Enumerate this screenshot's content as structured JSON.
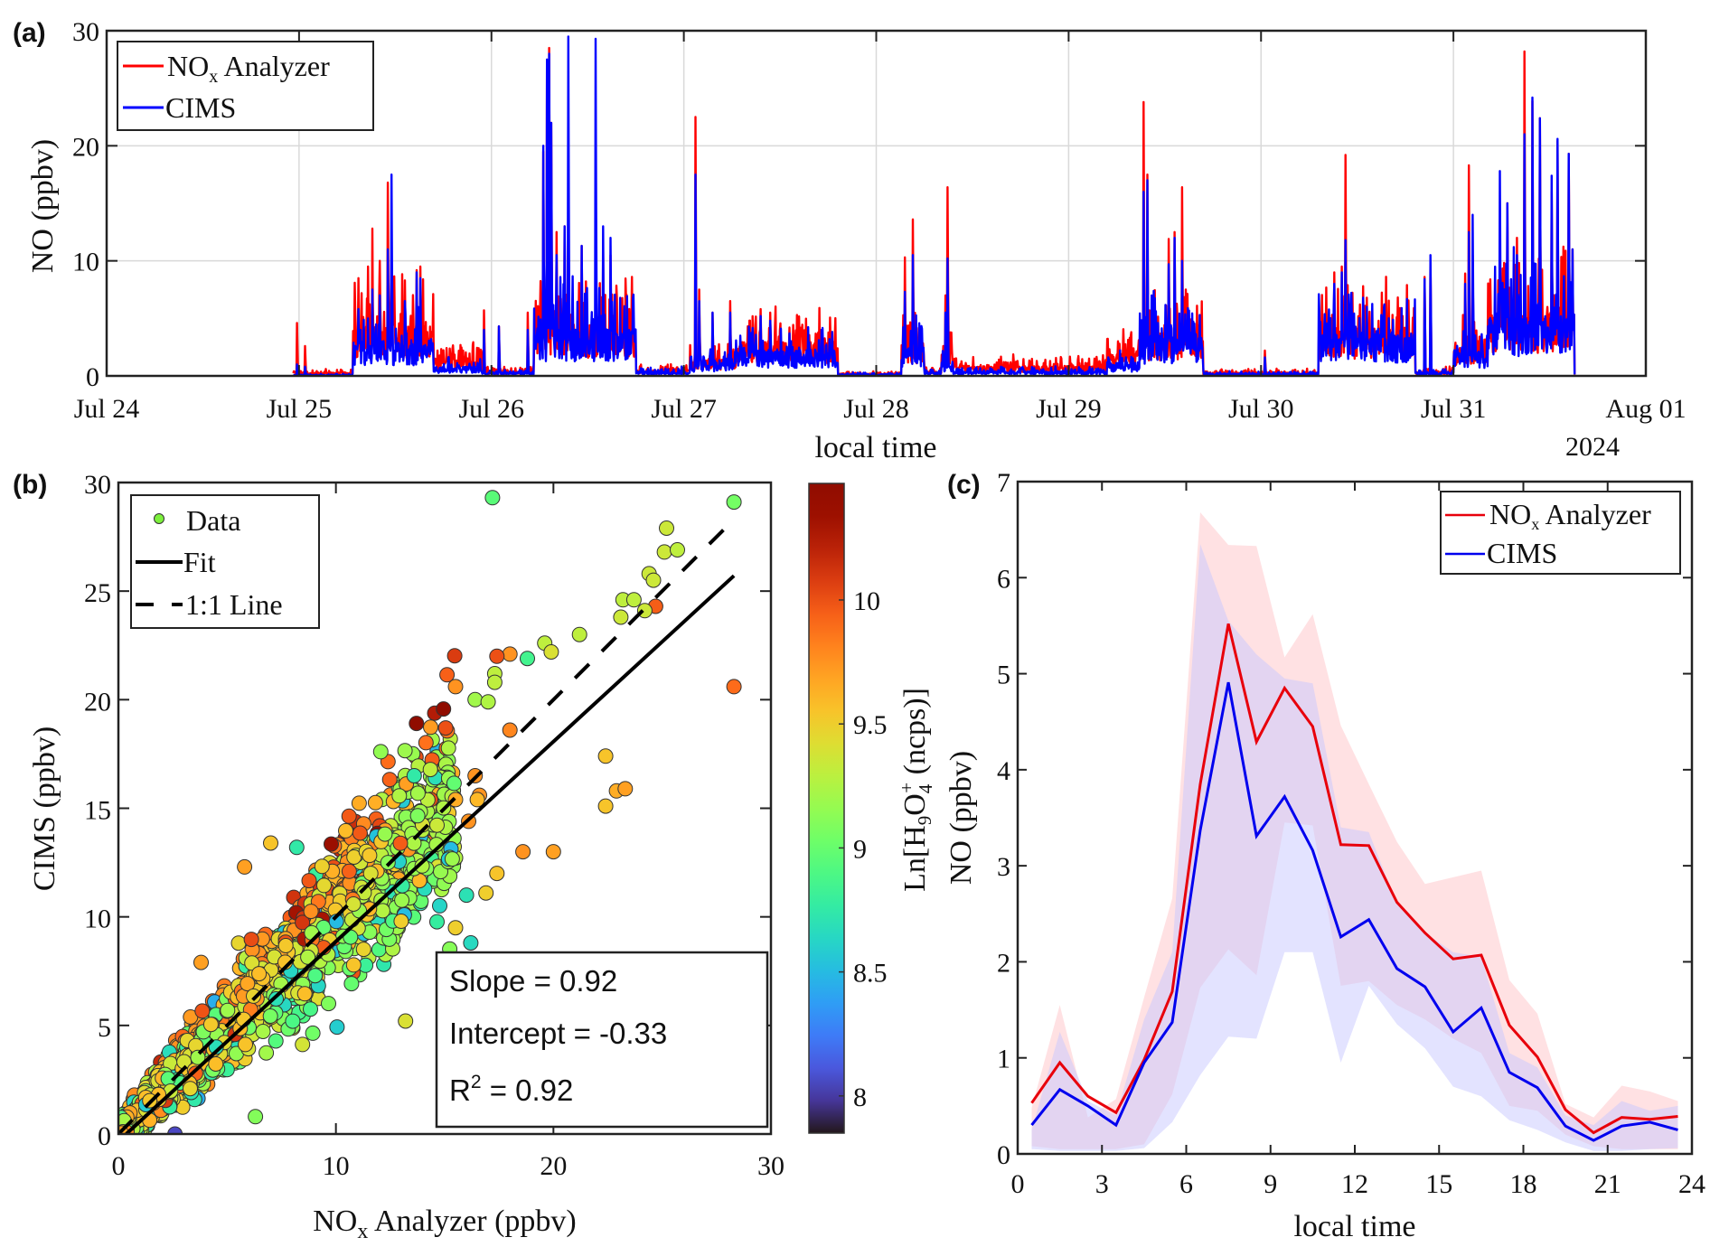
{
  "figure": {
    "panels": [
      "(a)",
      "(b)",
      "(c)"
    ]
  },
  "chart_data": [
    {
      "id": "a",
      "type": "line",
      "panel_label": "(a)",
      "title": "",
      "xlabel": "local time",
      "ylabel": "NO (ppbv)",
      "year_label": "2024",
      "x_ticks": [
        "Jul 24",
        "Jul 25",
        "Jul 26",
        "Jul 27",
        "Jul 28",
        "Jul 29",
        "Jul 30",
        "Jul 31",
        "Aug 01"
      ],
      "xlim_days": [
        0,
        8
      ],
      "ylim": [
        0,
        30
      ],
      "y_ticks": [
        0,
        10,
        20,
        30
      ],
      "grid": true,
      "legend_position": "top-left",
      "data_start_day": 0.97,
      "data_end_day": 7.63,
      "series": [
        {
          "name": "NOx Analyzer",
          "legend_main": "NO",
          "legend_sub": "x",
          "legend_rest": " Analyzer",
          "color": "#ff0000"
        },
        {
          "name": "CIMS",
          "legend_main": "CIMS",
          "legend_sub": "",
          "legend_rest": "",
          "color": "#0000ff"
        }
      ],
      "events": [
        {
          "day": 0.99,
          "nox": 4.6,
          "cims": 1.0
        },
        {
          "day": 1.03,
          "nox": 2.6,
          "cims": 0.8
        },
        {
          "day": 1.31,
          "nox": 8.5,
          "cims": 5.8
        },
        {
          "day": 1.36,
          "nox": 9.5,
          "cims": 5.0
        },
        {
          "day": 1.38,
          "nox": 12.8,
          "cims": 7.5
        },
        {
          "day": 1.42,
          "nox": 10.0,
          "cims": 7.0
        },
        {
          "day": 1.46,
          "nox": 16.8,
          "cims": 11.0
        },
        {
          "day": 1.48,
          "nox": 10.5,
          "cims": 17.5
        },
        {
          "day": 1.55,
          "nox": 8.3,
          "cims": 6.5
        },
        {
          "day": 1.61,
          "nox": 9.2,
          "cims": 9.0
        },
        {
          "day": 1.63,
          "nox": 9.5,
          "cims": 8.5
        },
        {
          "day": 1.96,
          "nox": 5.7,
          "cims": 4.0
        },
        {
          "day": 2.04,
          "nox": 4.3,
          "cims": 4.3
        },
        {
          "day": 2.19,
          "nox": 5.5,
          "cims": 4.0
        },
        {
          "day": 2.27,
          "nox": 19.5,
          "cims": 20.0
        },
        {
          "day": 2.29,
          "nox": 27.0,
          "cims": 27.5
        },
        {
          "day": 2.3,
          "nox": 28.5,
          "cims": 28.0
        },
        {
          "day": 2.31,
          "nox": 22.0,
          "cims": 22.0
        },
        {
          "day": 2.34,
          "nox": 12.5,
          "cims": 10.5
        },
        {
          "day": 2.38,
          "nox": 13.0,
          "cims": 13.0
        },
        {
          "day": 2.4,
          "nox": 3.0,
          "cims": 29.5
        },
        {
          "day": 2.47,
          "nox": 11.3,
          "cims": 11.3
        },
        {
          "day": 2.54,
          "nox": 3.0,
          "cims": 29.3
        },
        {
          "day": 2.58,
          "nox": 11.0,
          "cims": 13.0
        },
        {
          "day": 2.62,
          "nox": 10.5,
          "cims": 12.0
        },
        {
          "day": 3.06,
          "nox": 22.5,
          "cims": 17.5
        },
        {
          "day": 3.08,
          "nox": 7.5,
          "cims": 6.5
        },
        {
          "day": 3.15,
          "nox": 5.5,
          "cims": 5.5
        },
        {
          "day": 3.24,
          "nox": 6.5,
          "cims": 5.5
        },
        {
          "day": 3.4,
          "nox": 5.8,
          "cims": 5.2
        },
        {
          "day": 3.45,
          "nox": 5.5,
          "cims": 4.8
        },
        {
          "day": 3.55,
          "nox": 4.2,
          "cims": 3.7
        },
        {
          "day": 4.15,
          "nox": 10.3,
          "cims": 7.3
        },
        {
          "day": 4.19,
          "nox": 13.6,
          "cims": 10.5
        },
        {
          "day": 4.37,
          "nox": 16.4,
          "cims": 10.2
        },
        {
          "day": 4.36,
          "nox": 7.0,
          "cims": 5.5
        },
        {
          "day": 5.39,
          "nox": 23.8,
          "cims": 16.0
        },
        {
          "day": 5.41,
          "nox": 17.5,
          "cims": 17.0
        },
        {
          "day": 5.52,
          "nox": 11.9,
          "cims": 9.7
        },
        {
          "day": 5.55,
          "nox": 12.5,
          "cims": 12.0
        },
        {
          "day": 5.59,
          "nox": 16.4,
          "cims": 10.0
        },
        {
          "day": 5.61,
          "nox": 7.5,
          "cims": 4.5
        },
        {
          "day": 6.02,
          "nox": 2.2,
          "cims": 1.6
        },
        {
          "day": 6.38,
          "nox": 9.0,
          "cims": 8.0
        },
        {
          "day": 6.42,
          "nox": 9.5,
          "cims": 9.0
        },
        {
          "day": 6.44,
          "nox": 19.2,
          "cims": 11.8
        },
        {
          "day": 6.53,
          "nox": 7.8,
          "cims": 6.8
        },
        {
          "day": 6.55,
          "nox": 6.8,
          "cims": 6.0
        },
        {
          "day": 6.85,
          "nox": 8.6,
          "cims": 8.4
        },
        {
          "day": 6.88,
          "nox": 9.6,
          "cims": 10.5
        },
        {
          "day": 7.06,
          "nox": 8.9,
          "cims": 8.0
        },
        {
          "day": 7.08,
          "nox": 18.3,
          "cims": 12.5
        },
        {
          "day": 7.1,
          "nox": 10.5,
          "cims": 14.0
        },
        {
          "day": 7.24,
          "nox": 9.0,
          "cims": 17.8
        },
        {
          "day": 7.28,
          "nox": 15.0,
          "cims": 15.0
        },
        {
          "day": 7.33,
          "nox": 12.0,
          "cims": 10.5
        },
        {
          "day": 7.37,
          "nox": 28.2,
          "cims": 21.0
        },
        {
          "day": 7.41,
          "nox": 23.9,
          "cims": 24.2
        },
        {
          "day": 7.45,
          "nox": 22.4,
          "cims": 22.4
        },
        {
          "day": 7.51,
          "nox": 16.0,
          "cims": 17.4
        },
        {
          "day": 7.54,
          "nox": 20.4,
          "cims": 20.6
        },
        {
          "day": 7.6,
          "nox": 19.3,
          "cims": 19.3
        },
        {
          "day": 7.62,
          "nox": 11.0,
          "cims": 11.0
        }
      ],
      "baseline_segments": [
        {
          "from": 0.97,
          "to": 1.28,
          "nox": 0.3,
          "cims": 0.1
        },
        {
          "from": 1.28,
          "to": 1.7,
          "nox": 4.5,
          "cims": 3.0
        },
        {
          "from": 1.7,
          "to": 1.95,
          "nox": 1.5,
          "cims": 0.8
        },
        {
          "from": 1.95,
          "to": 2.22,
          "nox": 0.4,
          "cims": 0.3
        },
        {
          "from": 2.22,
          "to": 2.75,
          "nox": 4.5,
          "cims": 4.2
        },
        {
          "from": 2.75,
          "to": 3.03,
          "nox": 0.5,
          "cims": 0.4
        },
        {
          "from": 3.03,
          "to": 3.27,
          "nox": 1.5,
          "cims": 1.2
        },
        {
          "from": 3.27,
          "to": 3.8,
          "nox": 3.0,
          "cims": 2.3
        },
        {
          "from": 3.8,
          "to": 4.13,
          "nox": 0.2,
          "cims": 0.15
        },
        {
          "from": 4.13,
          "to": 4.25,
          "nox": 3.0,
          "cims": 2.5
        },
        {
          "from": 4.25,
          "to": 4.34,
          "nox": 0.4,
          "cims": 0.3
        },
        {
          "from": 4.34,
          "to": 4.4,
          "nox": 2.5,
          "cims": 1.3
        },
        {
          "from": 4.4,
          "to": 5.2,
          "nox": 0.9,
          "cims": 0.4
        },
        {
          "from": 5.2,
          "to": 5.37,
          "nox": 2.0,
          "cims": 1.2
        },
        {
          "from": 5.37,
          "to": 5.7,
          "nox": 3.8,
          "cims": 3.5
        },
        {
          "from": 5.7,
          "to": 6.3,
          "nox": 0.3,
          "cims": 0.2
        },
        {
          "from": 6.3,
          "to": 6.8,
          "nox": 4.2,
          "cims": 3.8
        },
        {
          "from": 6.8,
          "to": 7.0,
          "nox": 0.4,
          "cims": 0.3
        },
        {
          "from": 7.0,
          "to": 7.18,
          "nox": 2.5,
          "cims": 2.2
        },
        {
          "from": 7.18,
          "to": 7.63,
          "nox": 5.5,
          "cims": 5.3
        }
      ]
    },
    {
      "id": "b",
      "type": "scatter",
      "panel_label": "(b)",
      "title": "",
      "xlabel_main": "NO",
      "xlabel_sub": "x",
      "xlabel_rest": " Analyzer (ppbv)",
      "ylabel": "CIMS (ppbv)",
      "xlim": [
        0,
        30
      ],
      "ylim": [
        0,
        30
      ],
      "x_ticks": [
        0,
        10,
        20,
        30
      ],
      "y_ticks": [
        0,
        5,
        10,
        15,
        20,
        25,
        30
      ],
      "grid": false,
      "legend_position": "top-left",
      "legend": [
        "Data",
        "Fit",
        "1:1 Line"
      ],
      "fit": {
        "slope": 0.92,
        "intercept": -0.33,
        "r2": 0.92
      },
      "stats_lines": [
        "Slope = 0.92",
        "Intercept = -0.33",
        "R",
        " = 0.92"
      ],
      "stats_r2_sup": "2",
      "n_generated_points": 2600,
      "outliers": [
        {
          "x": 17.2,
          "y": 29.3,
          "c": 8.95
        },
        {
          "x": 28.3,
          "y": 29.1,
          "c": 9.05
        },
        {
          "x": 25.2,
          "y": 27.9,
          "c": 9.35
        },
        {
          "x": 25.1,
          "y": 26.8,
          "c": 9.35
        },
        {
          "x": 25.7,
          "y": 26.9,
          "c": 9.3
        },
        {
          "x": 24.4,
          "y": 25.8,
          "c": 9.35
        },
        {
          "x": 24.6,
          "y": 25.5,
          "c": 9.35
        },
        {
          "x": 23.2,
          "y": 24.6,
          "c": 9.3
        },
        {
          "x": 23.7,
          "y": 24.6,
          "c": 9.3
        },
        {
          "x": 24.7,
          "y": 24.3,
          "c": 9.95
        },
        {
          "x": 23.1,
          "y": 23.8,
          "c": 9.35
        },
        {
          "x": 24.2,
          "y": 24.1,
          "c": 9.35
        },
        {
          "x": 21.2,
          "y": 23.0,
          "c": 9.3
        },
        {
          "x": 19.6,
          "y": 22.6,
          "c": 9.3
        },
        {
          "x": 19.9,
          "y": 22.2,
          "c": 9.4
        },
        {
          "x": 18.8,
          "y": 21.9,
          "c": 8.85
        },
        {
          "x": 18.0,
          "y": 22.1,
          "c": 9.75
        },
        {
          "x": 17.4,
          "y": 22.0,
          "c": 10.0
        },
        {
          "x": 17.3,
          "y": 21.2,
          "c": 9.3
        },
        {
          "x": 17.3,
          "y": 20.8,
          "c": 9.3
        },
        {
          "x": 15.5,
          "y": 20.6,
          "c": 9.75
        },
        {
          "x": 28.3,
          "y": 20.6,
          "c": 9.9
        },
        {
          "x": 16.4,
          "y": 20.0,
          "c": 9.2
        },
        {
          "x": 17.0,
          "y": 19.9,
          "c": 9.25
        },
        {
          "x": 18.0,
          "y": 18.6,
          "c": 9.8
        },
        {
          "x": 22.4,
          "y": 17.4,
          "c": 9.55
        },
        {
          "x": 16.4,
          "y": 16.5,
          "c": 9.75
        },
        {
          "x": 13.6,
          "y": 16.5,
          "c": 8.75
        },
        {
          "x": 16.6,
          "y": 15.6,
          "c": 9.75
        },
        {
          "x": 16.5,
          "y": 15.4,
          "c": 9.6
        },
        {
          "x": 22.4,
          "y": 15.1,
          "c": 9.55
        },
        {
          "x": 22.9,
          "y": 15.8,
          "c": 9.65
        },
        {
          "x": 23.3,
          "y": 15.9,
          "c": 9.7
        },
        {
          "x": 15.5,
          "y": 15.4,
          "c": 9.65
        },
        {
          "x": 16.1,
          "y": 14.4,
          "c": 9.75
        },
        {
          "x": 20.0,
          "y": 13.0,
          "c": 9.7
        },
        {
          "x": 18.6,
          "y": 13.0,
          "c": 9.75
        },
        {
          "x": 7.0,
          "y": 13.4,
          "c": 9.55
        },
        {
          "x": 8.2,
          "y": 13.2,
          "c": 8.75
        },
        {
          "x": 11.6,
          "y": 12.0,
          "c": 9.4
        },
        {
          "x": 17.4,
          "y": 12.0,
          "c": 9.55
        },
        {
          "x": 16.0,
          "y": 11.0,
          "c": 8.7
        },
        {
          "x": 16.9,
          "y": 11.1,
          "c": 9.5
        },
        {
          "x": 13.0,
          "y": 9.8,
          "c": 9.5
        },
        {
          "x": 15.5,
          "y": 9.5,
          "c": 9.5
        },
        {
          "x": 16.2,
          "y": 8.8,
          "c": 8.65
        },
        {
          "x": 13.2,
          "y": 5.2,
          "c": 9.4
        },
        {
          "x": 6.3,
          "y": 0.8,
          "c": 9.1
        },
        {
          "x": 2.6,
          "y": 0.0,
          "c": 8.05
        },
        {
          "x": 5.8,
          "y": 12.3,
          "c": 9.7
        },
        {
          "x": 3.8,
          "y": 7.9,
          "c": 9.7
        }
      ],
      "colorbar": {
        "label_pre": "Ln[H",
        "label_sub1": "9",
        "label_mid": "O",
        "label_sub2": "4",
        "label_sup": "+",
        "label_post": " (ncps)]",
        "limits": [
          7.85,
          10.47
        ],
        "ticks": [
          "8",
          "8.5",
          "9",
          "9.5",
          "10"
        ],
        "tick_values": [
          8,
          8.5,
          9,
          9.5,
          10
        ],
        "colormap": "turbo"
      }
    },
    {
      "id": "c",
      "type": "line",
      "panel_label": "(c)",
      "title": "",
      "xlabel": "local time",
      "ylabel": "NO (ppbv)",
      "xlim": [
        0,
        24
      ],
      "ylim": [
        0,
        7
      ],
      "x_ticks": [
        0,
        3,
        6,
        9,
        12,
        15,
        18,
        21,
        24
      ],
      "y_ticks": [
        0,
        1,
        2,
        3,
        4,
        5,
        6,
        7
      ],
      "grid": false,
      "legend_position": "top-right",
      "x": [
        0.5,
        1.5,
        2.5,
        3.5,
        4.5,
        5.5,
        6.5,
        7.5,
        8.5,
        9.5,
        10.5,
        11.5,
        12.5,
        13.5,
        14.5,
        15.5,
        16.5,
        17.5,
        18.5,
        19.5,
        20.5,
        21.5,
        22.5,
        23.5
      ],
      "series": [
        {
          "name": "NOx Analyzer",
          "legend_main": "NO",
          "legend_sub": "x",
          "legend_rest": " Analyzer",
          "color": "#e8000b",
          "band_color": "#ffb3b8",
          "values": [
            0.53,
            0.95,
            0.6,
            0.43,
            0.98,
            1.69,
            3.85,
            5.52,
            4.29,
            4.85,
            4.45,
            3.22,
            3.21,
            2.62,
            2.3,
            2.03,
            2.07,
            1.34,
            1.01,
            0.46,
            0.22,
            0.38,
            0.36,
            0.39
          ],
          "upper": [
            0.48,
            1.55,
            0.38,
            0.57,
            1.63,
            2.66,
            6.68,
            6.34,
            6.33,
            5.17,
            5.62,
            4.46,
            3.85,
            3.25,
            2.81,
            2.88,
            2.95,
            1.81,
            1.46,
            0.52,
            0.38,
            0.71,
            0.65,
            0.55
          ],
          "lower": [
            0.08,
            0.05,
            0.05,
            0.05,
            0.1,
            0.62,
            1.73,
            2.13,
            1.86,
            3.45,
            3.42,
            1.75,
            1.8,
            1.55,
            1.4,
            1.2,
            1.05,
            0.5,
            0.45,
            0.2,
            0.08,
            0.05,
            0.05,
            0.05
          ]
        },
        {
          "name": "CIMS",
          "legend_main": "CIMS",
          "legend_sub": "",
          "legend_rest": "",
          "color": "#0000ee",
          "band_color": "#c8c8ff",
          "values": [
            0.3,
            0.67,
            0.5,
            0.3,
            0.95,
            1.37,
            3.37,
            4.91,
            3.31,
            3.72,
            3.16,
            2.26,
            2.44,
            1.93,
            1.74,
            1.27,
            1.52,
            0.85,
            0.69,
            0.29,
            0.14,
            0.29,
            0.33,
            0.25
          ],
          "upper": [
            0.25,
            1.27,
            0.55,
            0.4,
            1.4,
            2.1,
            6.35,
            5.55,
            5.2,
            4.95,
            4.9,
            3.4,
            3.35,
            2.6,
            2.3,
            2.1,
            2.05,
            1.05,
            0.9,
            0.4,
            0.3,
            0.55,
            0.45,
            0.5
          ],
          "lower": [
            0.05,
            0.03,
            0.03,
            0.03,
            0.06,
            0.33,
            0.82,
            1.22,
            1.2,
            2.1,
            2.1,
            0.95,
            1.75,
            1.35,
            1.1,
            0.7,
            0.6,
            0.35,
            0.25,
            0.12,
            0.03,
            0.03,
            0.05,
            0.06
          ]
        }
      ]
    }
  ]
}
